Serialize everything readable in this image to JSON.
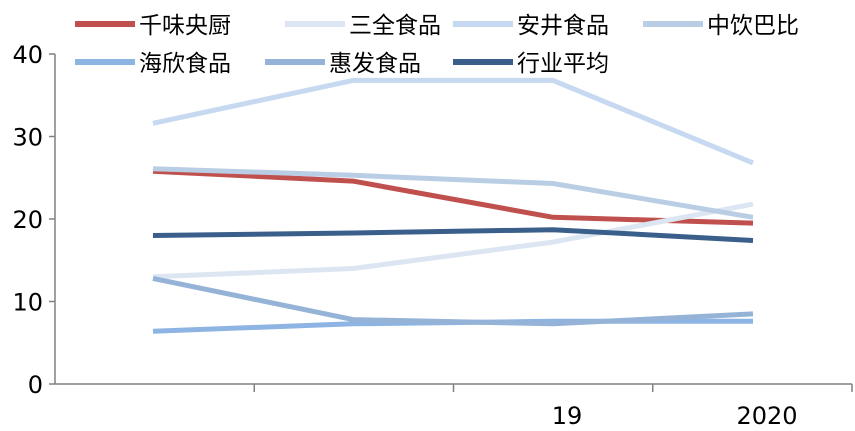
{
  "chart_data": {
    "type": "line",
    "x": [
      "",
      "",
      "19",
      "2020"
    ],
    "ylim": [
      0,
      40
    ],
    "yticks": [
      0,
      10,
      20,
      30,
      40
    ],
    "legend_position": "top",
    "grid": false,
    "series": [
      {
        "name": "千味央厨",
        "color": "#C0504D",
        "values": [
          25.8,
          24.6,
          20.2,
          19.5
        ]
      },
      {
        "name": "三全食品",
        "color": "#DCE6F2",
        "values": [
          13.0,
          14.0,
          17.2,
          21.8
        ]
      },
      {
        "name": "安井食品",
        "color": "#C6D9F0",
        "values": [
          31.6,
          36.8,
          36.8,
          26.8
        ]
      },
      {
        "name": "中饮巴比",
        "color": "#B9CDE5",
        "values": [
          26.1,
          25.3,
          24.3,
          20.2
        ]
      },
      {
        "name": "海欣食品",
        "color": "#8EB4E3",
        "values": [
          6.4,
          7.3,
          7.6,
          7.6
        ]
      },
      {
        "name": "惠发食品",
        "color": "#95B3D7",
        "values": [
          12.8,
          7.8,
          7.3,
          8.5
        ]
      },
      {
        "name": "行业平均",
        "color": "#3A5F8A",
        "values": [
          18.0,
          18.3,
          18.7,
          17.4
        ]
      }
    ]
  }
}
